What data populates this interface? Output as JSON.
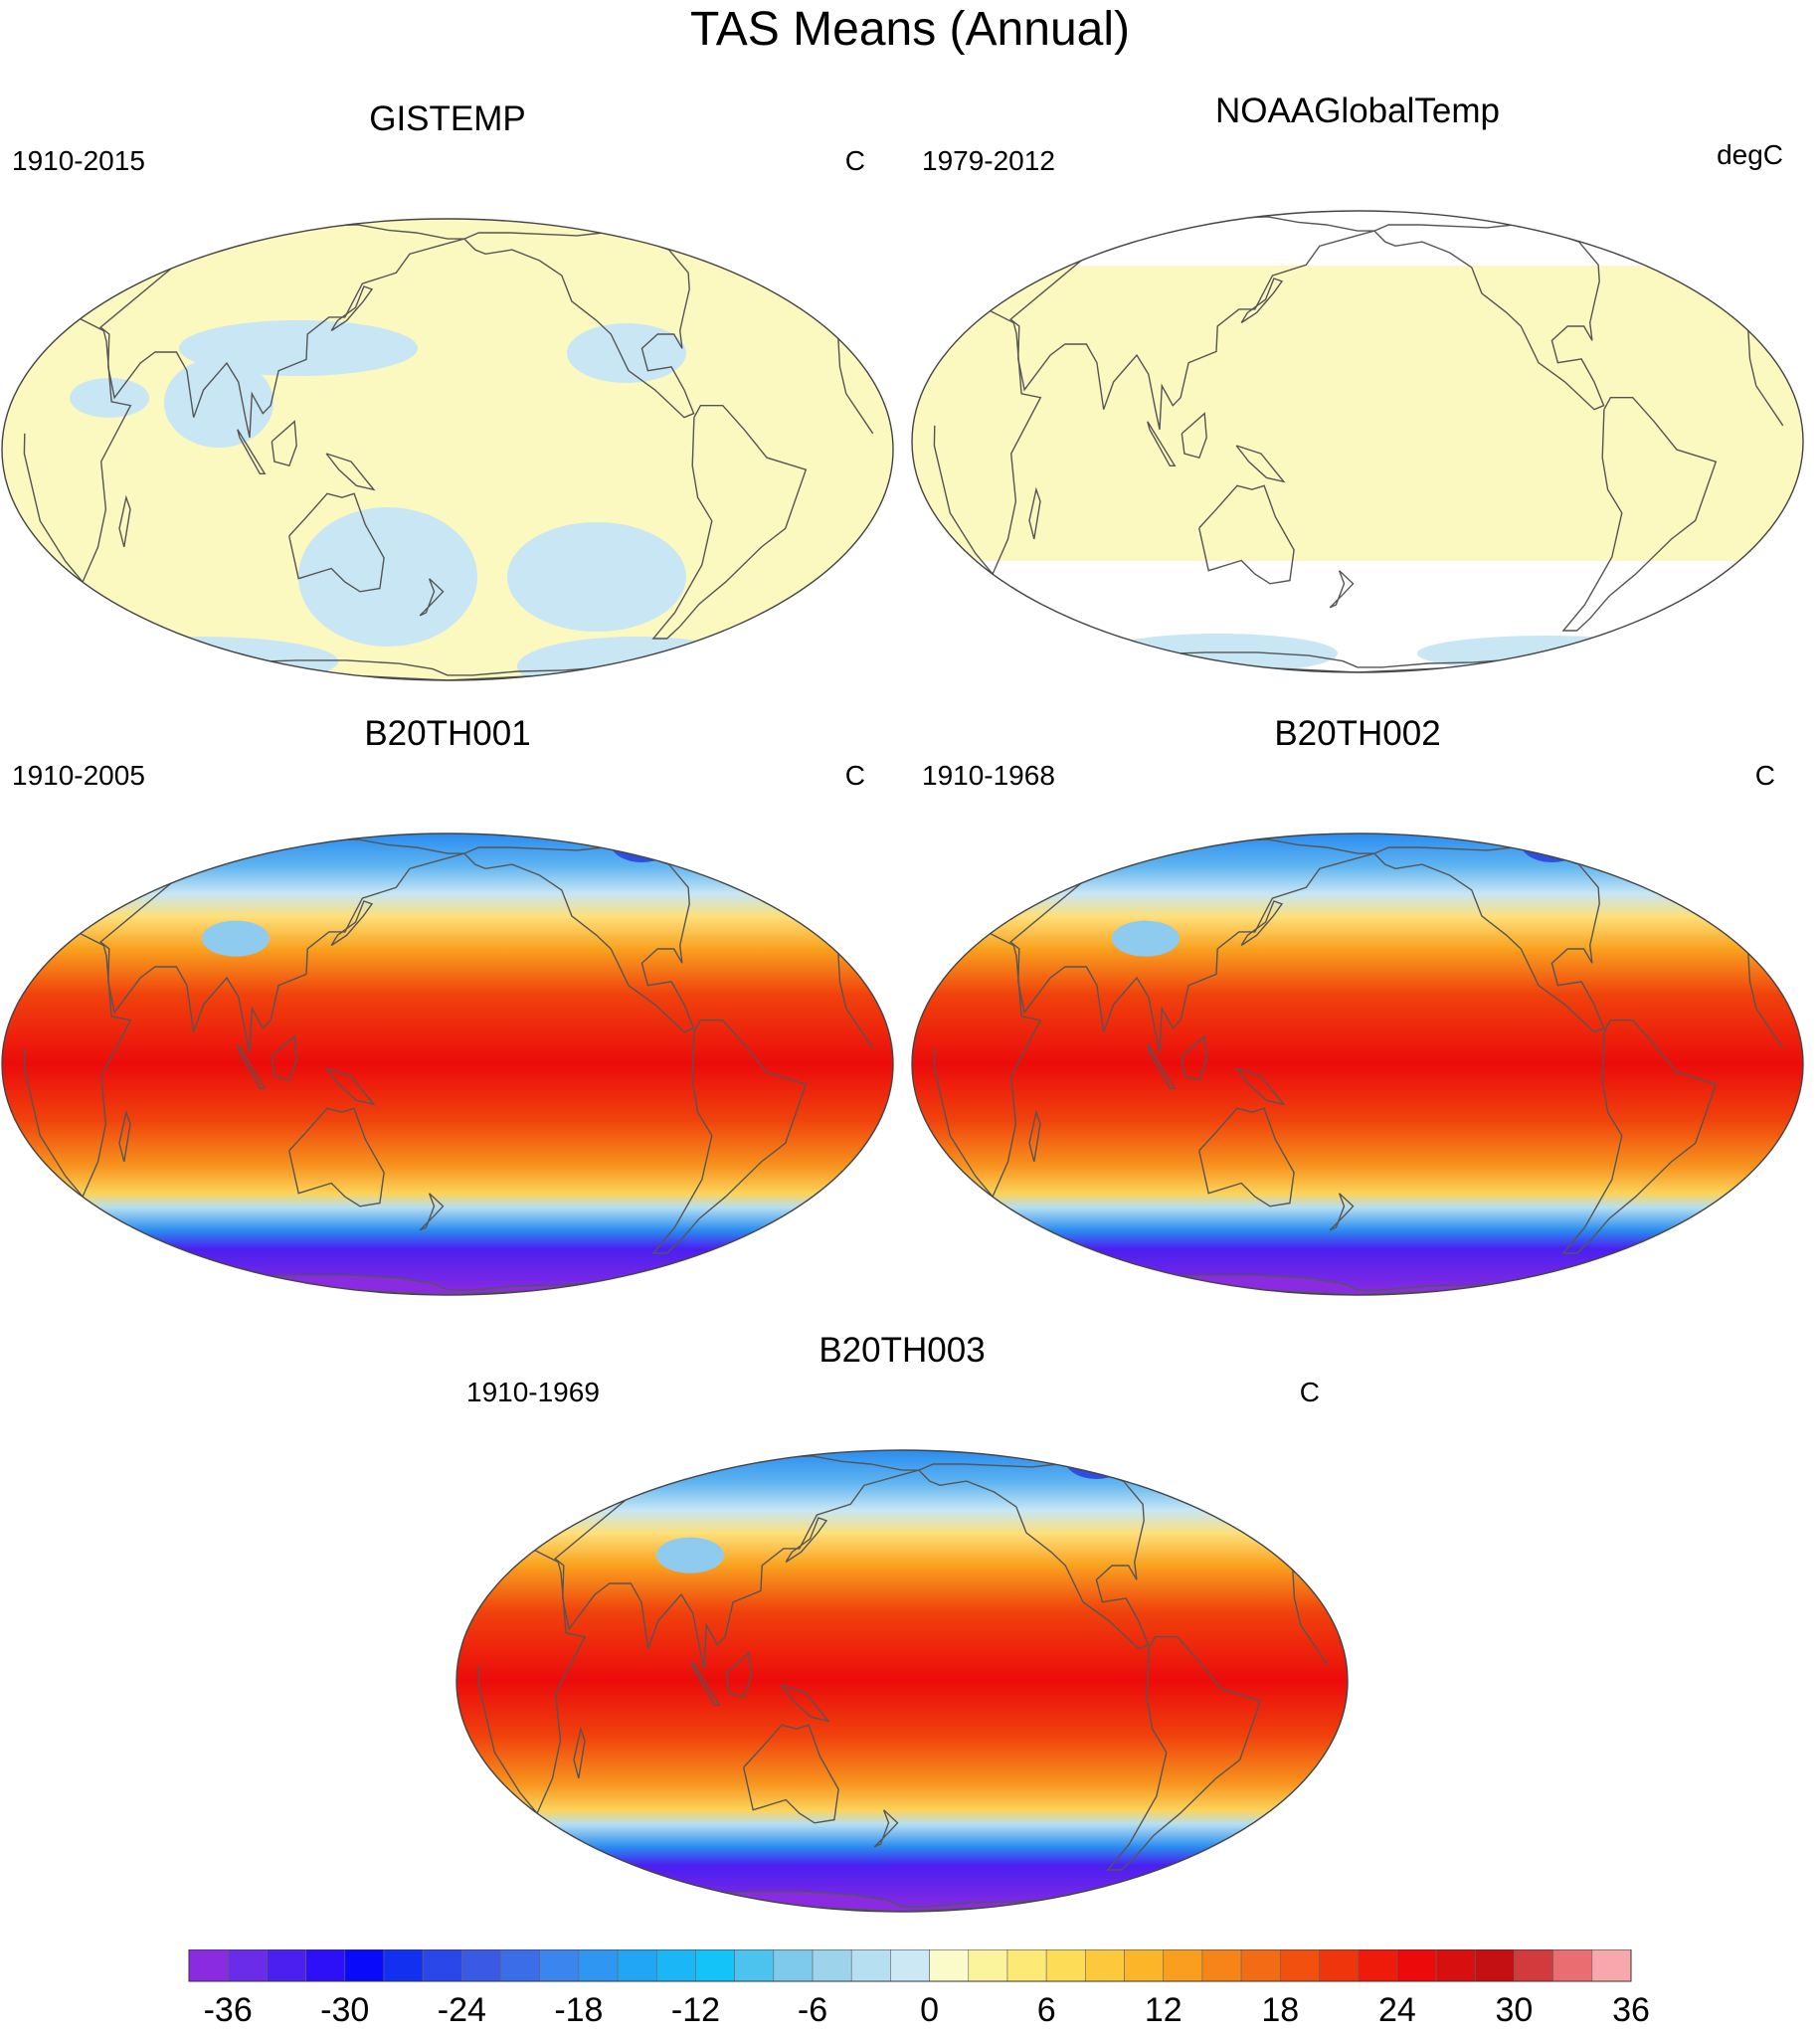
{
  "title": "TAS Means (Annual)",
  "panels": [
    {
      "name": "GISTEMP",
      "period": "1910-2015",
      "units": "C",
      "style": "obs-gis"
    },
    {
      "name": "NOAAGlobalTemp",
      "period": "1979-2012",
      "units": "degC",
      "style": "obs-noaa"
    },
    {
      "name": "B20TH001",
      "period": "1910-2005",
      "units": "C",
      "style": "model"
    },
    {
      "name": "B20TH002",
      "period": "1910-1968",
      "units": "C",
      "style": "model"
    },
    {
      "name": "B20TH003",
      "period": "1910-1969",
      "units": "C",
      "style": "model"
    }
  ],
  "colorbar": {
    "labels": [
      "-36",
      "-30",
      "-24",
      "-18",
      "-12",
      "-6",
      "0",
      "6",
      "12",
      "18",
      "24",
      "30",
      "36"
    ],
    "colors": [
      "#8a2be2",
      "#6a2ce8",
      "#4b1ff0",
      "#2d10f8",
      "#0a0afb",
      "#1230f0",
      "#2a48ea",
      "#3a5ae6",
      "#3c6de8",
      "#3a86ee",
      "#2f97f2",
      "#21a6f4",
      "#1bb6f6",
      "#14c3f8",
      "#4cc3ef",
      "#7ecaec",
      "#9ed3ec",
      "#b6dff1",
      "#cbe8f4",
      "#fbfbc9",
      "#fcf39d",
      "#fce976",
      "#fddc58",
      "#fcc93c",
      "#fbb528",
      "#f99e1e",
      "#f68419",
      "#f36b14",
      "#f1500f",
      "#ef350c",
      "#ee1a0a",
      "#ec0a0a",
      "#d70f0f",
      "#c51013",
      "#d23a3d",
      "#e86e72",
      "#f8a8ad"
    ]
  },
  "colors": {
    "obs_warm": "#fbf8c0",
    "obs_cool": "#c9e6f5",
    "coast": "#555555"
  }
}
